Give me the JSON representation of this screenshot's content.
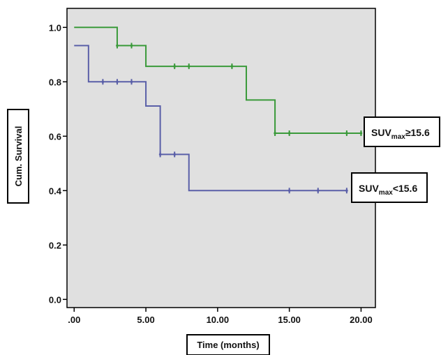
{
  "chart_data": {
    "type": "line",
    "subtype": "kaplan-meier step",
    "xlabel": "Time (months)",
    "ylabel": "Cum. Survival",
    "xlim": [
      -0.5,
      21
    ],
    "ylim": [
      -0.03,
      1.07
    ],
    "x_ticks": [
      0,
      5,
      10,
      15,
      20
    ],
    "x_tick_labels": [
      ".00",
      "5.00",
      "10.00",
      "15.00",
      "20.00"
    ],
    "y_ticks": [
      0.0,
      0.2,
      0.4,
      0.6,
      0.8,
      1.0
    ],
    "y_tick_labels": [
      "0.0",
      "0.2",
      "0.4",
      "0.6",
      "0.8",
      "1.0"
    ],
    "grid": false,
    "plot_background": "#e0e0e0",
    "series": [
      {
        "key": "high",
        "name": "SUVmax≥15.6",
        "label_main": "SUV",
        "label_sub": "max",
        "label_rest": "≥15.6",
        "color": "#3a9a3a",
        "steps": [
          [
            0,
            1.0
          ],
          [
            3,
            0.933
          ],
          [
            5,
            0.857
          ],
          [
            12,
            0.733
          ],
          [
            14,
            0.611
          ],
          [
            20,
            0.611
          ]
        ],
        "censored": [
          [
            3,
            0.933
          ],
          [
            4,
            0.933
          ],
          [
            7,
            0.857
          ],
          [
            8,
            0.857
          ],
          [
            11,
            0.857
          ],
          [
            14,
            0.611
          ],
          [
            15,
            0.611
          ],
          [
            19,
            0.611
          ],
          [
            20,
            0.611
          ]
        ]
      },
      {
        "key": "low",
        "name": "SUVmax<15.6",
        "label_main": "SUV",
        "label_sub": "max",
        "label_rest": "<15.6",
        "color": "#5a5fa8",
        "steps": [
          [
            0,
            0.933
          ],
          [
            1,
            0.8
          ],
          [
            5,
            0.711
          ],
          [
            6,
            0.533
          ],
          [
            8,
            0.4
          ],
          [
            19,
            0.4
          ]
        ],
        "censored": [
          [
            2,
            0.8
          ],
          [
            3,
            0.8
          ],
          [
            4,
            0.8
          ],
          [
            6,
            0.533
          ],
          [
            7,
            0.533
          ],
          [
            15,
            0.4
          ],
          [
            17,
            0.4
          ],
          [
            19,
            0.4
          ]
        ]
      }
    ]
  }
}
